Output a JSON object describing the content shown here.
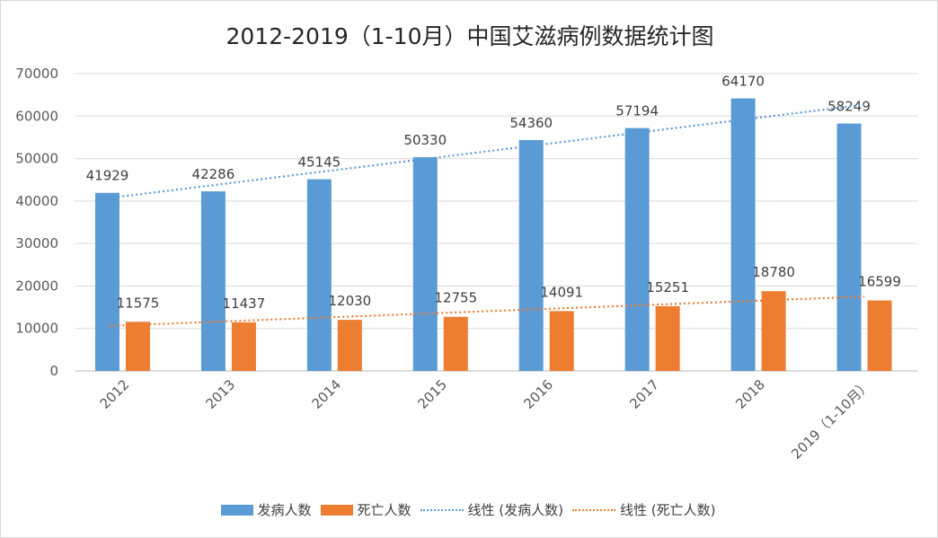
{
  "chart_data": {
    "type": "bar",
    "title": "2012-2019（1-10月）中国艾滋病例数据统计图",
    "categories": [
      "2012",
      "2013",
      "2014",
      "2015",
      "2016",
      "2017",
      "2018",
      "2019（1-10月）"
    ],
    "series": [
      {
        "name": "发病人数",
        "values": [
          41929,
          42286,
          45145,
          50330,
          54360,
          57194,
          64170,
          58249
        ],
        "color": "#5b9bd5"
      },
      {
        "name": "死亡人数",
        "values": [
          11575,
          11437,
          12030,
          12755,
          14091,
          15251,
          18780,
          16599
        ],
        "color": "#ed7d31"
      }
    ],
    "trendlines": [
      {
        "name": "线性 (发病人数)",
        "of": "发病人数",
        "type": "linear",
        "color": "#5b9bd5"
      },
      {
        "name": "线性 (死亡人数)",
        "of": "死亡人数",
        "type": "linear",
        "color": "#ed7d31"
      }
    ],
    "ylim": [
      0,
      70000
    ],
    "yticks": [
      0,
      10000,
      20000,
      30000,
      40000,
      50000,
      60000,
      70000
    ],
    "grid": true,
    "legend": "bottom",
    "xlabel": "",
    "ylabel": ""
  }
}
